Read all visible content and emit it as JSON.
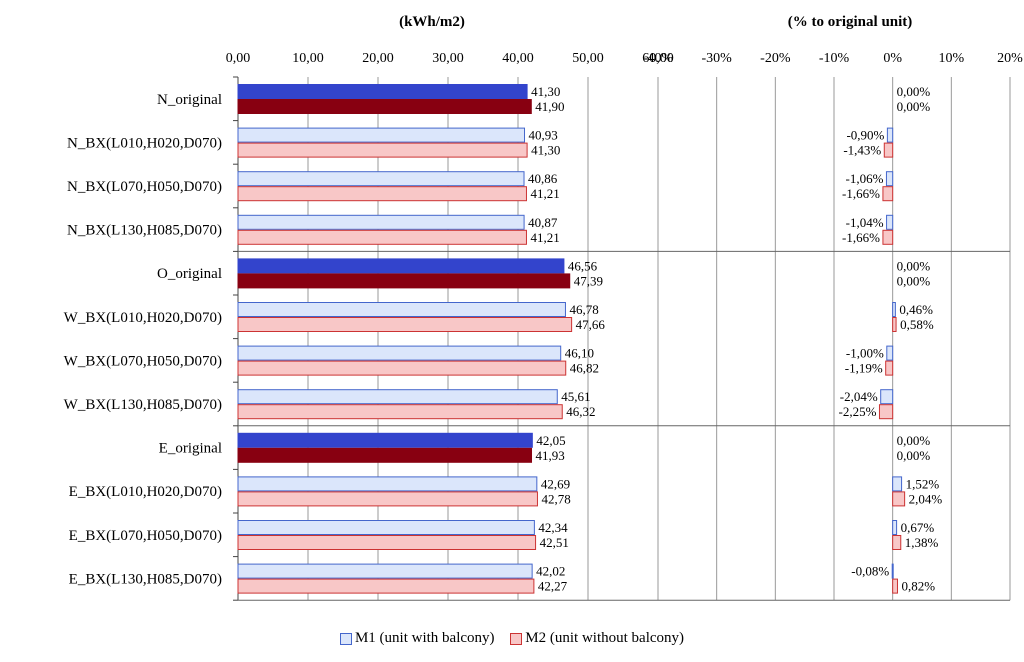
{
  "chart_data": {
    "type": "bar",
    "orientation": "horizontal",
    "categories": [
      "N_original",
      "N_BX(L010,H020,D070)",
      "N_BX(L070,H050,D070)",
      "N_BX(L130,H085,D070)",
      "O_original",
      "W_BX(L010,H020,D070)",
      "W_BX(L070,H050,D070)",
      "W_BX(L130,H085,D070)",
      "E_original",
      "E_BX(L010,H020,D070)",
      "E_BX(L070,H050,D070)",
      "E_BX(L130,H085,D070)"
    ],
    "groups": [
      0,
      0,
      0,
      0,
      1,
      1,
      1,
      1,
      2,
      2,
      2,
      2
    ],
    "is_original": [
      true,
      false,
      false,
      false,
      true,
      false,
      false,
      false,
      true,
      false,
      false,
      false
    ],
    "left_panel": {
      "title": "(kWh/m2)",
      "xlim": [
        0,
        60
      ],
      "ticks": [
        "0,00",
        "10,00",
        "20,00",
        "30,00",
        "40,00",
        "50,00",
        "60,00"
      ],
      "tick_values": [
        0,
        10,
        20,
        30,
        40,
        50,
        60
      ],
      "series": [
        {
          "name": "M1 (unit with balcony)",
          "values": [
            41.3,
            40.93,
            40.86,
            40.87,
            46.56,
            46.78,
            46.1,
            45.61,
            42.05,
            42.69,
            42.34,
            42.02
          ],
          "labels": [
            "41,30",
            "40,93",
            "40,86",
            "40,87",
            "46,56",
            "46,78",
            "46,10",
            "45,61",
            "42,05",
            "42,69",
            "42,34",
            "42,02"
          ]
        },
        {
          "name": "M2 (unit without balcony)",
          "values": [
            41.9,
            41.3,
            41.21,
            41.21,
            47.39,
            47.66,
            46.82,
            46.32,
            41.93,
            42.78,
            42.51,
            42.27
          ],
          "labels": [
            "41,90",
            "41,30",
            "41,21",
            "41,21",
            "47,39",
            "47,66",
            "46,82",
            "46,32",
            "41,93",
            "42,78",
            "42,51",
            "42,27"
          ]
        }
      ]
    },
    "right_panel": {
      "title": "(% to original unit)",
      "xlim": [
        -40,
        20
      ],
      "ticks": [
        "-40%",
        "-30%",
        "-20%",
        "-10%",
        "0%",
        "10%",
        "20%"
      ],
      "tick_values": [
        -40,
        -30,
        -20,
        -10,
        0,
        10,
        20
      ],
      "series": [
        {
          "name": "M1 (unit with balcony)",
          "values": [
            0.0,
            -0.9,
            -1.06,
            -1.04,
            0.0,
            0.46,
            -1.0,
            -2.04,
            0.0,
            1.52,
            0.67,
            -0.08
          ],
          "labels": [
            "0,00%",
            "-0,90%",
            "-1,06%",
            "-1,04%",
            "0,00%",
            "0,46%",
            "-1,00%",
            "-2,04%",
            "0,00%",
            "1,52%",
            "0,67%",
            "-0,08%"
          ]
        },
        {
          "name": "M2 (unit without balcony)",
          "values": [
            0.0,
            -1.43,
            -1.66,
            -1.66,
            0.0,
            0.58,
            -1.19,
            -2.25,
            0.0,
            2.04,
            1.38,
            0.82
          ],
          "labels": [
            "0,00%",
            "-1,43%",
            "-1,66%",
            "-1,66%",
            "0,00%",
            "0,58%",
            "-1,19%",
            "-2,25%",
            "0,00%",
            "2,04%",
            "1,38%",
            "0,82%"
          ]
        }
      ]
    },
    "colors": {
      "m1_original": "#3344cc",
      "m2_original": "#880011",
      "m1_fill": "#dbe6fb",
      "m1_stroke": "#4466cc",
      "m2_fill": "#f8c7c7",
      "m2_stroke": "#cc3333",
      "grid": "#9a9a9a",
      "separator": "#666666"
    },
    "legend": {
      "position": "bottom",
      "items": [
        "M1 (unit with balcony)",
        "M2 (unit without balcony)"
      ]
    }
  }
}
